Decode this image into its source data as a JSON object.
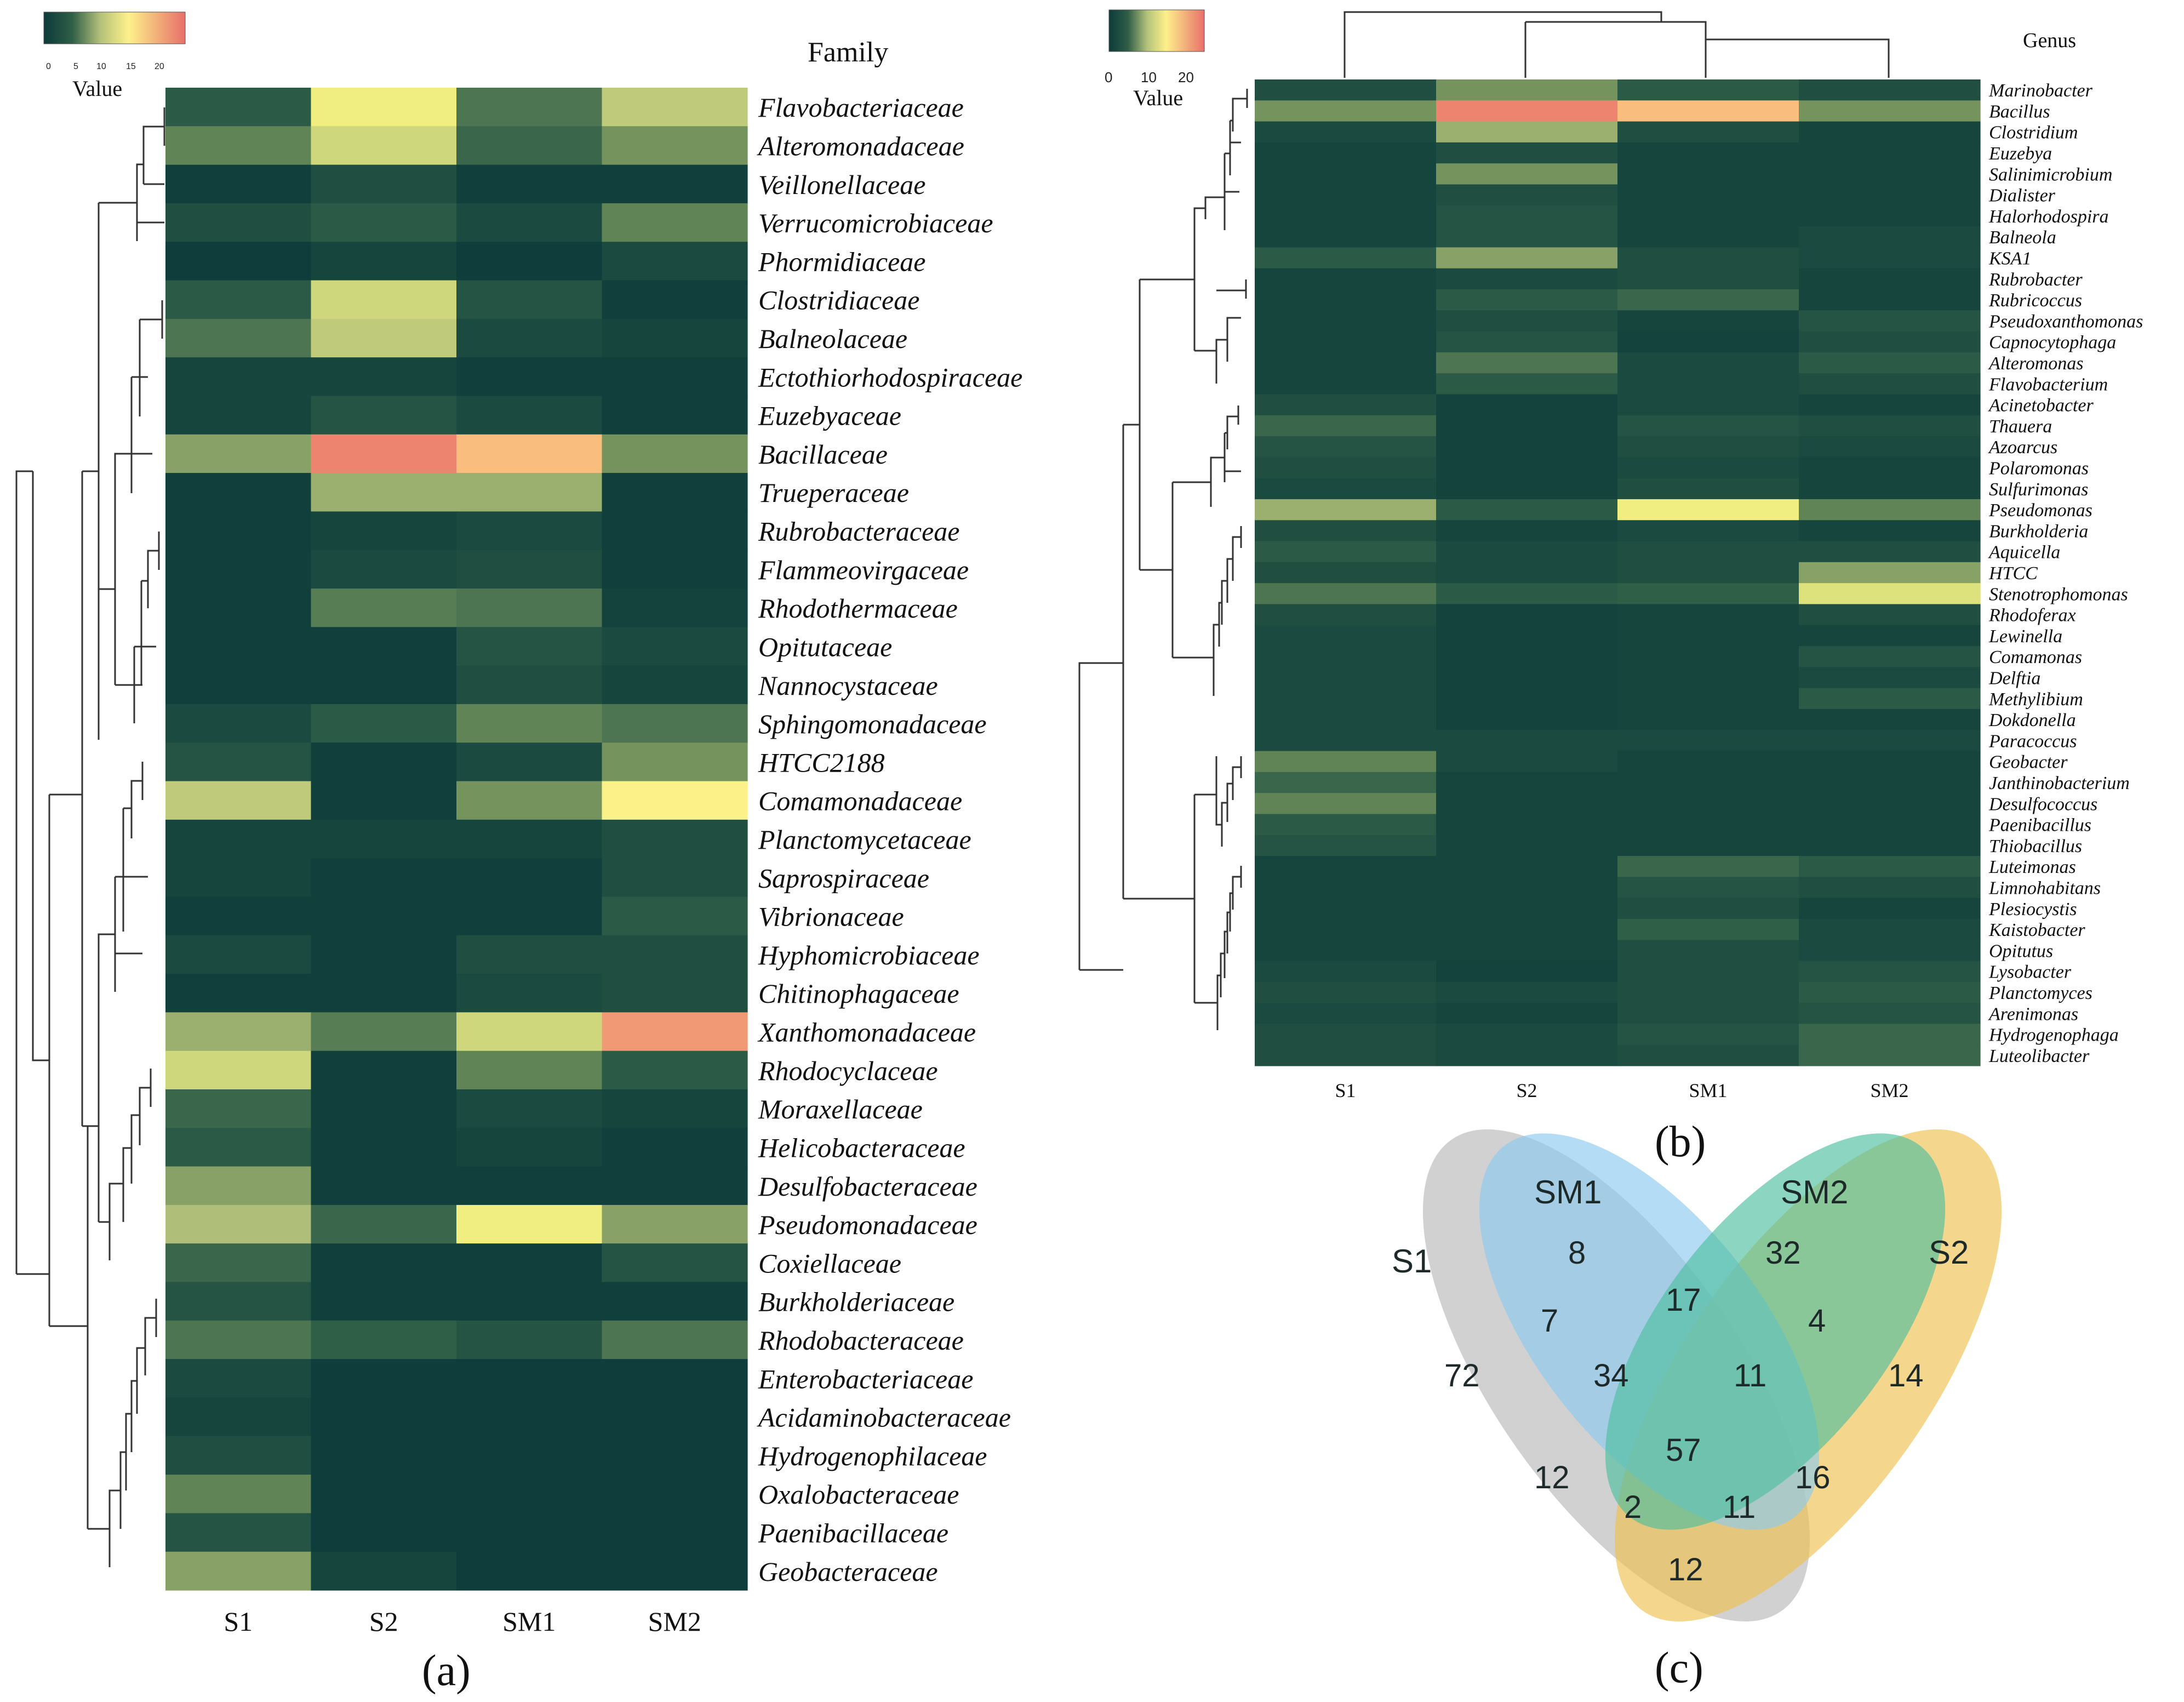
{
  "colors": {
    "scale": [
      "#0c3a3a",
      "#2f5e48",
      "#72915c",
      "#b4c27a",
      "#e8eb7c",
      "#fdf08a",
      "#f8b47c",
      "#e8706a"
    ],
    "venn_s1": "#b8b8b8",
    "venn_sm1": "#8ccbf0",
    "venn_sm2": "#4fbfa0",
    "venn_s2": "#f0c050"
  },
  "panels": {
    "a_label": "(a)",
    "b_label": "(b)",
    "c_label": "(c)"
  },
  "legend_a": {
    "title": "Value",
    "ticks": [
      "0",
      "5",
      "10",
      "15",
      "20"
    ]
  },
  "legend_b": {
    "title": "Value",
    "ticks": [
      "0",
      "10",
      "20"
    ]
  },
  "chart_data": [
    {
      "type": "heatmap",
      "title": "Family",
      "columns": [
        "S1",
        "S2",
        "SM1",
        "SM2"
      ],
      "value_range": [
        0,
        24
      ],
      "rows": [
        {
          "label": "Flavobacteriaceae",
          "values": [
            3,
            15,
            5,
            11
          ]
        },
        {
          "label": "Alteromonadaceae",
          "values": [
            6,
            12,
            4,
            7
          ]
        },
        {
          "label": "Veillonellaceae",
          "values": [
            0.5,
            2,
            0.5,
            0.5
          ]
        },
        {
          "label": "Verrucomicrobiaceae",
          "values": [
            2,
            3,
            1.5,
            6
          ]
        },
        {
          "label": "Phormidiaceae",
          "values": [
            0.3,
            1,
            0.3,
            1.5
          ]
        },
        {
          "label": "Clostridiaceae",
          "values": [
            3,
            12,
            2.5,
            0.5
          ]
        },
        {
          "label": "Balneolaceae",
          "values": [
            5,
            11,
            1.5,
            1
          ]
        },
        {
          "label": "Ectothiorhodospiraceae",
          "values": [
            1,
            1,
            0.5,
            0.5
          ]
        },
        {
          "label": "Euzebyaceae",
          "values": [
            1,
            2.5,
            1.5,
            0.5
          ]
        },
        {
          "label": "Bacillaceae",
          "values": [
            8,
            23,
            20,
            7
          ]
        },
        {
          "label": "Trueperaceae",
          "values": [
            0.5,
            9,
            9,
            0.5
          ]
        },
        {
          "label": "Rubrobacteraceae",
          "values": [
            0.5,
            1,
            1.5,
            0.5
          ]
        },
        {
          "label": "Flammeovirgaceae",
          "values": [
            0.5,
            1.5,
            2,
            0.5
          ]
        },
        {
          "label": "Rhodothermaceae",
          "values": [
            0.5,
            5.5,
            5,
            0.8
          ]
        },
        {
          "label": "Opitutaceae",
          "values": [
            0.5,
            0.5,
            2.5,
            1.5
          ]
        },
        {
          "label": "Nannocystaceae",
          "values": [
            0.5,
            0.5,
            2,
            1
          ]
        },
        {
          "label": "Sphingomonadaceae",
          "values": [
            1.5,
            3,
            6,
            5
          ]
        },
        {
          "label": "HTCC2188",
          "values": [
            2.5,
            0.5,
            1.5,
            7
          ]
        },
        {
          "label": "Comamonadaceae",
          "values": [
            11,
            0.5,
            7,
            17
          ]
        },
        {
          "label": "Planctomycetaceae",
          "values": [
            1,
            1,
            1,
            2
          ]
        },
        {
          "label": "Saprospiraceae",
          "values": [
            1,
            0.5,
            0.5,
            2
          ]
        },
        {
          "label": "Vibrionaceae",
          "values": [
            0.5,
            0.5,
            0.5,
            3
          ]
        },
        {
          "label": "Hyphomicrobiaceae",
          "values": [
            1.5,
            0.5,
            2,
            2
          ]
        },
        {
          "label": "Chitinophagaceae",
          "values": [
            0.5,
            0.5,
            1.5,
            2
          ]
        },
        {
          "label": "Xanthomonadaceae",
          "values": [
            9,
            5.5,
            12,
            22
          ]
        },
        {
          "label": "Rhodocyclaceae",
          "values": [
            12,
            0.5,
            6,
            3
          ]
        },
        {
          "label": "Moraxellaceae",
          "values": [
            4,
            0.5,
            1.5,
            1
          ]
        },
        {
          "label": "Helicobacteraceae",
          "values": [
            3,
            0.5,
            1,
            0.5
          ]
        },
        {
          "label": "Desulfobacteraceae",
          "values": [
            8,
            0.5,
            0.5,
            0.5
          ]
        },
        {
          "label": "Pseudomonadaceae",
          "values": [
            10,
            4,
            15,
            8
          ]
        },
        {
          "label": "Coxiellaceae",
          "values": [
            4,
            0.5,
            0.5,
            2.5
          ]
        },
        {
          "label": "Burkholderiaceae",
          "values": [
            2.5,
            0.5,
            0.5,
            0.5
          ]
        },
        {
          "label": "Rhodobacteraceae",
          "values": [
            5,
            3.5,
            2.5,
            5
          ]
        },
        {
          "label": "Enterobacteriaceae",
          "values": [
            1.5,
            0.3,
            0.3,
            0.3
          ]
        },
        {
          "label": "Acidaminobacteraceae",
          "values": [
            1,
            0.3,
            0.3,
            0.3
          ]
        },
        {
          "label": "Hydrogenophilaceae",
          "values": [
            2,
            0.3,
            0.3,
            0.3
          ]
        },
        {
          "label": "Oxalobacteraceae",
          "values": [
            6,
            0.3,
            0.3,
            0.3
          ]
        },
        {
          "label": "Paenibacillaceae",
          "values": [
            2.5,
            0.3,
            0.3,
            0.3
          ]
        },
        {
          "label": "Geobacteraceae",
          "values": [
            8,
            1,
            0.3,
            0.3
          ]
        }
      ]
    },
    {
      "type": "heatmap",
      "title": "Genus",
      "columns": [
        "S1",
        "S2",
        "SM1",
        "SM2"
      ],
      "value_range": [
        0,
        24
      ],
      "rows": [
        {
          "label": "Marinobacter",
          "values": [
            2,
            7,
            3,
            2
          ]
        },
        {
          "label": "Bacillus",
          "values": [
            7,
            23,
            20,
            7
          ]
        },
        {
          "label": "Clostridium",
          "values": [
            1.5,
            9,
            2,
            1
          ]
        },
        {
          "label": "Euzebya",
          "values": [
            1,
            2,
            1,
            1
          ]
        },
        {
          "label": "Salinimicrobium",
          "values": [
            1,
            7,
            1,
            1
          ]
        },
        {
          "label": "Dialister",
          "values": [
            1,
            2,
            1,
            1
          ]
        },
        {
          "label": "Halorhodospira",
          "values": [
            1,
            2.5,
            1,
            1
          ]
        },
        {
          "label": "Balneola",
          "values": [
            1,
            2.5,
            1,
            1.5
          ]
        },
        {
          "label": "KSA1",
          "values": [
            3,
            8,
            2,
            1.5
          ]
        },
        {
          "label": "Rubrobacter",
          "values": [
            1,
            1.5,
            2,
            1
          ]
        },
        {
          "label": "Rubricoccus",
          "values": [
            1,
            3,
            4,
            1
          ]
        },
        {
          "label": "Pseudoxanthomonas",
          "values": [
            1,
            2,
            1,
            2.5
          ]
        },
        {
          "label": "Capnocytophaga",
          "values": [
            1,
            2.5,
            0.8,
            2
          ]
        },
        {
          "label": "Alteromonas",
          "values": [
            1,
            5,
            1.5,
            3
          ]
        },
        {
          "label": "Flavobacterium",
          "values": [
            1,
            3,
            1.5,
            2
          ]
        },
        {
          "label": "Acinetobacter",
          "values": [
            2,
            0.8,
            1.5,
            1
          ]
        },
        {
          "label": "Thauera",
          "values": [
            4,
            0.8,
            2.5,
            2
          ]
        },
        {
          "label": "Azoarcus",
          "values": [
            2.5,
            0.8,
            2,
            1.5
          ]
        },
        {
          "label": "Polaromonas",
          "values": [
            2,
            0.8,
            1.5,
            1
          ]
        },
        {
          "label": "Sulfurimonas",
          "values": [
            1.5,
            0.8,
            2,
            1
          ]
        },
        {
          "label": "Pseudomonas",
          "values": [
            9,
            3,
            15,
            6
          ]
        },
        {
          "label": "Burkholderia",
          "values": [
            2,
            1,
            1.5,
            1
          ]
        },
        {
          "label": "Aquicella",
          "values": [
            3,
            1.5,
            2,
            2
          ]
        },
        {
          "label": "HTCC",
          "values": [
            2,
            1.5,
            2,
            8
          ]
        },
        {
          "label": "Stenotrophomonas",
          "values": [
            5,
            3,
            3.5,
            13
          ]
        },
        {
          "label": "Rhodoferax",
          "values": [
            2,
            0.8,
            1,
            2
          ]
        },
        {
          "label": "Lewinella",
          "values": [
            1.5,
            0.8,
            1,
            1
          ]
        },
        {
          "label": "Comamonas",
          "values": [
            1.5,
            0.8,
            1,
            2.5
          ]
        },
        {
          "label": "Delftia",
          "values": [
            1.5,
            0.8,
            1,
            1.5
          ]
        },
        {
          "label": "Methylibium",
          "values": [
            1.5,
            0.8,
            1,
            3
          ]
        },
        {
          "label": "Dokdonella",
          "values": [
            1.5,
            0.8,
            1,
            1
          ]
        },
        {
          "label": "Paracoccus",
          "values": [
            1.5,
            1.5,
            1.5,
            1.5
          ]
        },
        {
          "label": "Geobacter",
          "values": [
            6,
            1.5,
            1,
            1
          ]
        },
        {
          "label": "Janthinobacterium",
          "values": [
            4,
            1,
            1,
            1
          ]
        },
        {
          "label": "Desulfococcus",
          "values": [
            6,
            1,
            1,
            1
          ]
        },
        {
          "label": "Paenibacillus",
          "values": [
            3,
            1,
            1,
            1
          ]
        },
        {
          "label": "Thiobacillus",
          "values": [
            2.5,
            1,
            1,
            1
          ]
        },
        {
          "label": "Luteimonas",
          "values": [
            1,
            1,
            4,
            3
          ]
        },
        {
          "label": "Limnohabitans",
          "values": [
            1,
            1,
            2.5,
            2
          ]
        },
        {
          "label": "Plesiocystis",
          "values": [
            1,
            1,
            2,
            1
          ]
        },
        {
          "label": "Kaistobacter",
          "values": [
            1,
            1,
            3.5,
            1.5
          ]
        },
        {
          "label": "Opitutus",
          "values": [
            1,
            1,
            2,
            1.5
          ]
        },
        {
          "label": "Lysobacter",
          "values": [
            1.5,
            0.8,
            2,
            2.5
          ]
        },
        {
          "label": "Planctomyces",
          "values": [
            2,
            1.5,
            2,
            3
          ]
        },
        {
          "label": "Arenimonas",
          "values": [
            1.5,
            1,
            2,
            2.5
          ]
        },
        {
          "label": "Hydrogenophaga",
          "values": [
            2,
            1.5,
            2.5,
            4
          ]
        },
        {
          "label": "Luteolibacter",
          "values": [
            2,
            1.5,
            2,
            4
          ]
        }
      ]
    },
    {
      "type": "venn",
      "sets": [
        "S1",
        "SM1",
        "SM2",
        "S2"
      ],
      "regions": [
        {
          "sets": [
            "S1"
          ],
          "value": 72
        },
        {
          "sets": [
            "SM1"
          ],
          "value": 8
        },
        {
          "sets": [
            "SM2"
          ],
          "value": 32
        },
        {
          "sets": [
            "S2"
          ],
          "value": 14
        },
        {
          "sets": [
            "S1",
            "SM1"
          ],
          "value": 7
        },
        {
          "sets": [
            "SM1",
            "SM2"
          ],
          "value": 17
        },
        {
          "sets": [
            "SM2",
            "S2"
          ],
          "value": 4
        },
        {
          "sets": [
            "S1",
            "SM1",
            "SM2"
          ],
          "value": 34
        },
        {
          "sets": [
            "SM1",
            "SM2",
            "S2"
          ],
          "value": 11
        },
        {
          "sets": [
            "S1",
            "SM1",
            "SM2",
            "S2"
          ],
          "value": 57
        },
        {
          "sets": [
            "S1",
            "SM2"
          ],
          "value": 12
        },
        {
          "sets": [
            "SM1",
            "S2"
          ],
          "value": 16
        },
        {
          "sets": [
            "S1",
            "SM2",
            "S2"
          ],
          "value": 2
        },
        {
          "sets": [
            "S1",
            "SM1",
            "S2"
          ],
          "value": 11
        },
        {
          "sets": [
            "S1",
            "S2"
          ],
          "value": 12
        }
      ]
    }
  ]
}
